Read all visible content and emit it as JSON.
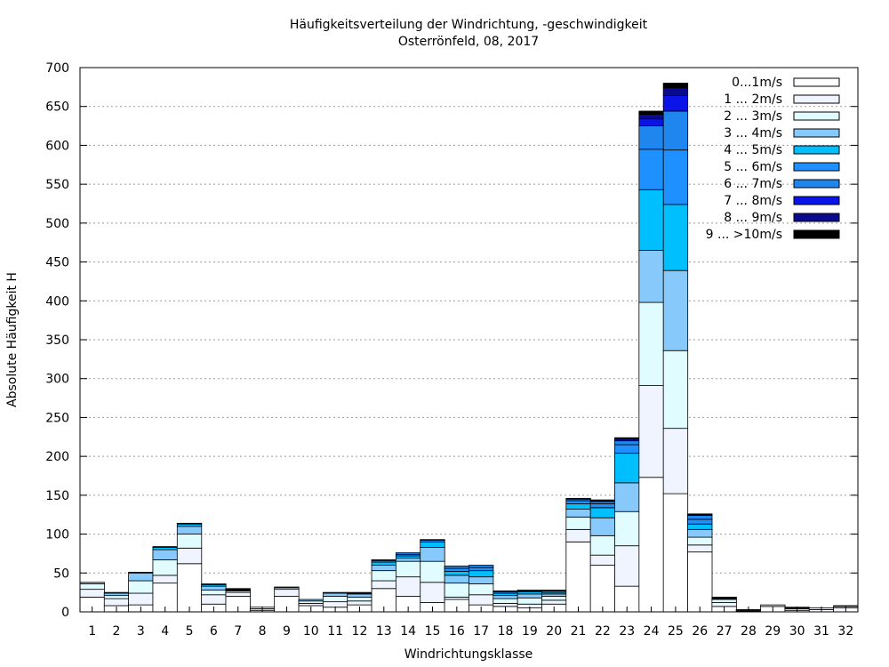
{
  "chart_data": {
    "type": "bar",
    "stacked": true,
    "title": "Häufigkeitsverteilung der Windrichtung, -geschwindigkeit",
    "subtitle": "Osterrönfeld, 08, 2017",
    "xlabel": "Windrichtungsklasse",
    "ylabel": "Absolute Häufigkeit H",
    "ylim": [
      0,
      700
    ],
    "yticks": [
      0,
      50,
      100,
      150,
      200,
      250,
      300,
      350,
      400,
      450,
      500,
      550,
      600,
      650,
      700
    ],
    "grid": true,
    "legend_position": "top-right",
    "categories": [
      "1",
      "2",
      "3",
      "4",
      "5",
      "6",
      "7",
      "8",
      "9",
      "10",
      "11",
      "12",
      "13",
      "14",
      "15",
      "16",
      "17",
      "18",
      "19",
      "20",
      "21",
      "22",
      "23",
      "24",
      "25",
      "26",
      "27",
      "28",
      "29",
      "30",
      "31",
      "32"
    ],
    "series": [
      {
        "name": "0...1m/s",
        "color": "#ffffff",
        "values": [
          19,
          8,
          9,
          37,
          62,
          10,
          20,
          2,
          20,
          8,
          6,
          9,
          30,
          20,
          12,
          16,
          9,
          7,
          5,
          10,
          90,
          60,
          33,
          173,
          152,
          77,
          7,
          1,
          7,
          2,
          3,
          5
        ]
      },
      {
        "name": "1 ... 2m/s",
        "color": "#f0f4fe",
        "values": [
          10,
          9,
          15,
          10,
          20,
          12,
          5,
          2,
          9,
          3,
          7,
          5,
          10,
          25,
          26,
          3,
          13,
          4,
          5,
          5,
          16,
          13,
          52,
          118,
          84,
          9,
          5,
          1,
          2,
          2,
          2,
          2
        ]
      },
      {
        "name": "2 ... 3m/s",
        "color": "#e0fcfe",
        "values": [
          7,
          4,
          16,
          20,
          18,
          6,
          2,
          2,
          2,
          3,
          7,
          5,
          13,
          20,
          27,
          18,
          14,
          6,
          8,
          5,
          16,
          25,
          44,
          107,
          100,
          10,
          4,
          1,
          0,
          1,
          0,
          1
        ]
      },
      {
        "name": "3 ... 4m/s",
        "color": "#87c9fa",
        "values": [
          2,
          3,
          10,
          13,
          10,
          5,
          0,
          0,
          1,
          2,
          4,
          4,
          7,
          4,
          18,
          10,
          9,
          4,
          5,
          3,
          10,
          23,
          37,
          67,
          103,
          10,
          1,
          0,
          0,
          0,
          0,
          0
        ]
      },
      {
        "name": "4 ... 5m/s",
        "color": "#00bfff",
        "values": [
          0,
          1,
          1,
          3,
          3,
          2,
          0,
          0,
          0,
          0,
          1,
          1,
          4,
          3,
          7,
          5,
          8,
          3,
          3,
          2,
          7,
          13,
          38,
          78,
          85,
          7,
          1,
          0,
          0,
          0,
          0,
          0
        ]
      },
      {
        "name": "5 ... 6m/s",
        "color": "#1e90ff",
        "values": [
          0,
          0,
          0,
          1,
          1,
          1,
          0,
          0,
          0,
          0,
          0,
          1,
          2,
          2,
          2,
          4,
          4,
          2,
          1,
          2,
          4,
          5,
          11,
          52,
          70,
          6,
          1,
          0,
          0,
          0,
          0,
          0
        ]
      },
      {
        "name": "6 ... 7m/s",
        "color": "#1e86ee",
        "values": [
          0,
          0,
          0,
          0,
          0,
          0,
          0,
          0,
          0,
          0,
          0,
          0,
          1,
          2,
          1,
          3,
          3,
          1,
          1,
          1,
          2,
          3,
          5,
          30,
          50,
          5,
          0,
          0,
          0,
          0,
          0,
          0
        ]
      },
      {
        "name": "7 ... 8m/s",
        "color": "#0a14e8",
        "values": [
          0,
          0,
          0,
          0,
          0,
          0,
          0,
          0,
          0,
          0,
          0,
          0,
          0,
          0,
          0,
          0,
          0,
          0,
          0,
          0,
          1,
          1,
          2,
          9,
          20,
          1,
          0,
          0,
          0,
          0,
          0,
          0
        ]
      },
      {
        "name": "8 ... 9m/s",
        "color": "#0a0a8e",
        "values": [
          0,
          0,
          0,
          0,
          0,
          0,
          1,
          0,
          0,
          0,
          0,
          0,
          0,
          0,
          0,
          0,
          0,
          0,
          0,
          0,
          0,
          1,
          1,
          6,
          10,
          1,
          0,
          0,
          0,
          0,
          0,
          0
        ]
      },
      {
        "name": "9 ... >10m/s",
        "color": "#000000",
        "values": [
          0,
          0,
          0,
          0,
          0,
          0,
          2,
          0,
          0,
          0,
          0,
          0,
          0,
          0,
          0,
          0,
          0,
          0,
          0,
          0,
          0,
          0,
          1,
          4,
          6,
          0,
          0,
          0,
          0,
          1,
          0,
          0
        ]
      }
    ]
  }
}
